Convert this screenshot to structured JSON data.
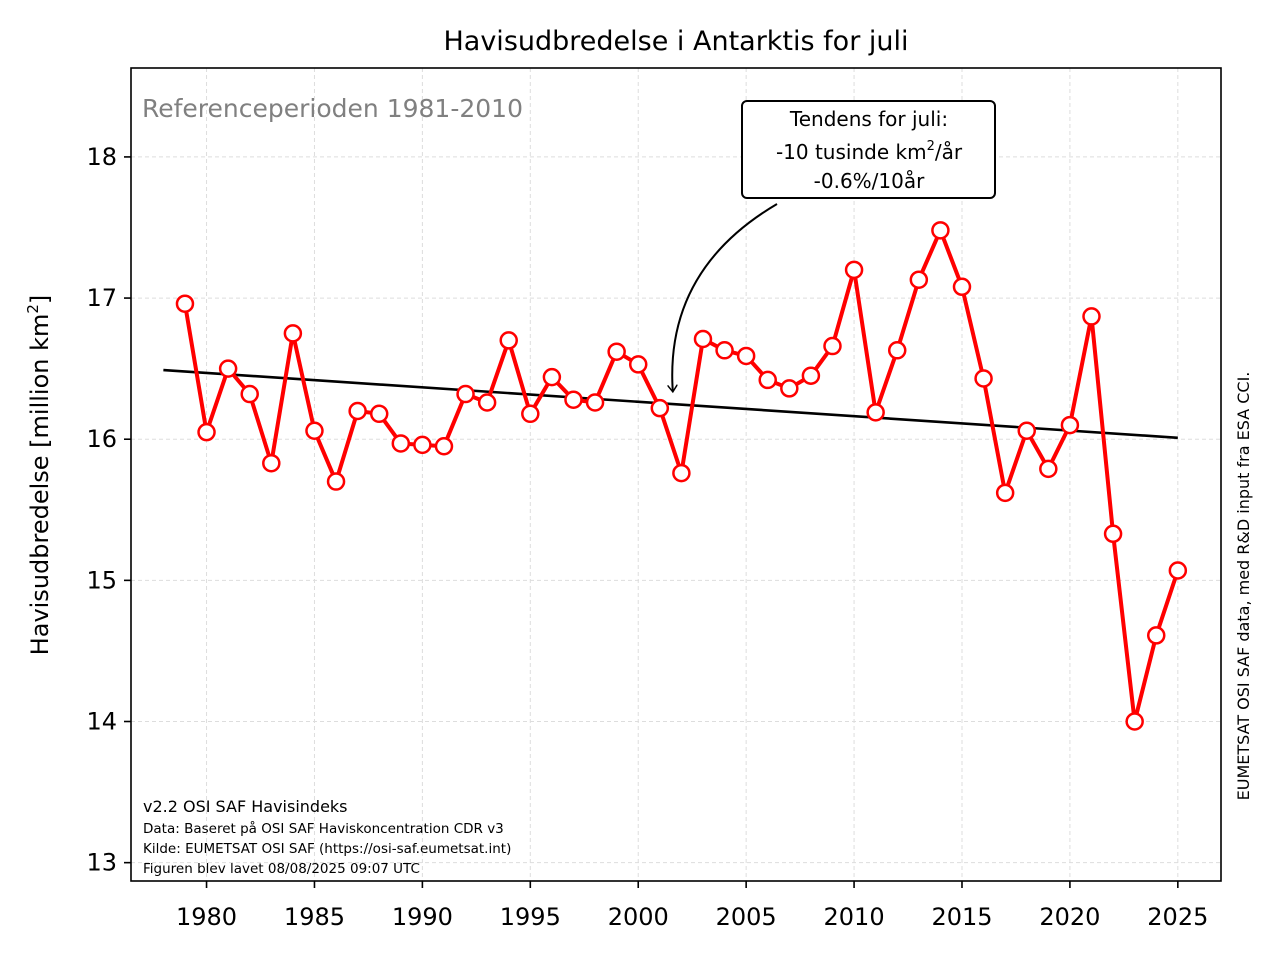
{
  "chart_data": {
    "type": "line",
    "title": "Havisudbredelse i Antarktis for juli",
    "ylabel_main": "Havisudbredelse [million km",
    "ylabel_sup": "2",
    "ylabel_end": "]",
    "xlim": [
      1976.5,
      2027
    ],
    "ylim": [
      12.87,
      18.63
    ],
    "xticks": [
      "1980",
      "1985",
      "1990",
      "1995",
      "2000",
      "2005",
      "2010",
      "2015",
      "2020",
      "2025"
    ],
    "yticks": [
      "13",
      "14",
      "15",
      "16",
      "17",
      "18"
    ],
    "grid": true,
    "series": [
      {
        "color": "#ff0000",
        "x": [
          1979,
          1980,
          1981,
          1982,
          1983,
          1984,
          1985,
          1986,
          1987,
          1988,
          1989,
          1990,
          1991,
          1992,
          1993,
          1994,
          1995,
          1996,
          1997,
          1998,
          1999,
          2000,
          2001,
          2002,
          2003,
          2004,
          2005,
          2006,
          2007,
          2008,
          2009,
          2010,
          2011,
          2012,
          2013,
          2014,
          2015,
          2016,
          2017,
          2018,
          2019,
          2020,
          2021,
          2022,
          2023,
          2024,
          2025
        ],
        "values": [
          16.96,
          16.05,
          16.5,
          16.32,
          15.83,
          16.75,
          16.06,
          15.7,
          16.2,
          16.18,
          15.97,
          15.96,
          15.95,
          16.32,
          16.26,
          16.7,
          16.18,
          16.44,
          16.28,
          16.26,
          16.62,
          16.53,
          16.22,
          15.76,
          16.71,
          16.63,
          16.59,
          16.42,
          16.36,
          16.45,
          16.66,
          17.2,
          16.19,
          16.63,
          17.13,
          17.48,
          17.08,
          16.43,
          15.62,
          16.06,
          15.79,
          16.1,
          16.87,
          15.33,
          14.0,
          14.61,
          15.07
        ]
      }
    ],
    "trend": {
      "color": "#000000",
      "x": [
        1978,
        2025
      ],
      "values": [
        16.49,
        16.01
      ]
    },
    "reference_text": "Referenceperioden 1981-2010",
    "annotation": {
      "line1": "Tendens for juli:",
      "line2_pre": "-10 tusinde km",
      "line2_sup": "2",
      "line2_post": "/år",
      "line3": "-0.6%/10år",
      "arrow_target": [
        2001.6,
        16.3
      ]
    },
    "footer": {
      "version": "v2.2 OSI SAF Havisindeks",
      "data": "Data: Baseret på OSI SAF Haviskoncentration CDR v3",
      "source": "Kilde: EUMETSAT OSI SAF (https://osi-saf.eumetsat.int)",
      "created": "Figuren blev lavet 08/08/2025 09:07 UTC"
    },
    "credit": "EUMETSAT OSI SAF data, med R&D input fra ESA CCI."
  }
}
